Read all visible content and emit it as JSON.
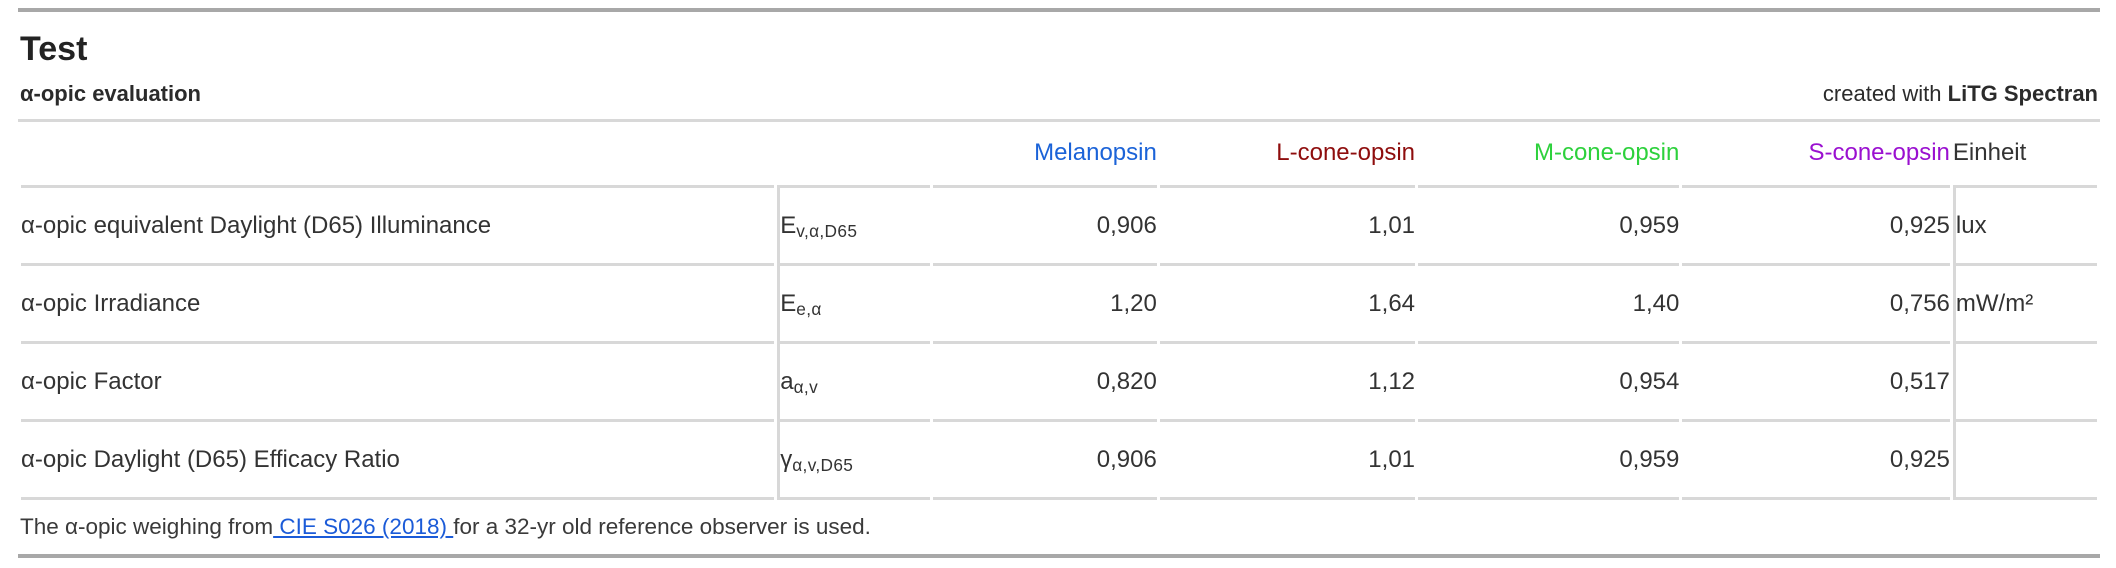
{
  "page": {
    "title": "Test",
    "subtitle": "α-opic evaluation",
    "credit_prefix": "created with ",
    "credit_name": "LiTG Spectran"
  },
  "colors": {
    "melanopsin": "#1b63d8",
    "l_cone_opsin": "#8e0d0d",
    "m_cone_opsin": "#2dd13c",
    "s_cone_opsin": "#9a10d0",
    "link": "#1b5bd8"
  },
  "table": {
    "columns": {
      "melanopsin": "Melanopsin",
      "l_cone": "L-cone-opsin",
      "m_cone": "M-cone-opsin",
      "s_cone": "S-cone-opsin",
      "unit": "Einheit"
    },
    "rows": [
      {
        "label": "α-opic equivalent Daylight (D65) Illuminance",
        "symbol_base": "E",
        "symbol_sub": "v,α,D65",
        "values": [
          "0,906",
          "1,01",
          "0,959",
          "0,925"
        ],
        "unit": "lux"
      },
      {
        "label": "α-opic Irradiance",
        "symbol_base": "E",
        "symbol_sub": "e,α",
        "values": [
          "1,20",
          "1,64",
          "1,40",
          "0,756"
        ],
        "unit": "mW/m²"
      },
      {
        "label": "α-opic Factor",
        "symbol_base": "a",
        "symbol_sub": "α,v",
        "values": [
          "0,820",
          "1,12",
          "0,954",
          "0,517"
        ],
        "unit": ""
      },
      {
        "label": "α-opic Daylight (D65) Efficacy Ratio",
        "symbol_base": "γ",
        "symbol_sub": "α,v,D65",
        "values": [
          "0,906",
          "1,01",
          "0,959",
          "0,925"
        ],
        "unit": ""
      }
    ]
  },
  "footer": {
    "before": "The α-opic weighing from",
    "link": " CIE S026 (2018) ",
    "after": "for a 32-yr old reference observer is used."
  }
}
